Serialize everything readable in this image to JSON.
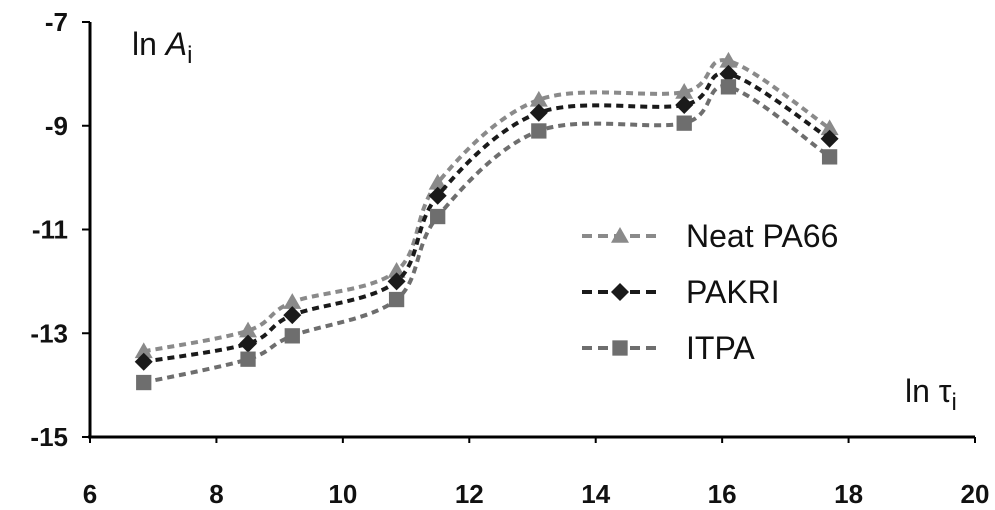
{
  "chart_data": {
    "type": "line",
    "title": "",
    "xlabel": {
      "prefix": "ln ",
      "symbol": "τ",
      "subscript": "i"
    },
    "ylabel": {
      "prefix": "ln ",
      "symbol": "A",
      "subscript": "i"
    },
    "xlim": [
      6,
      20
    ],
    "ylim": [
      -15,
      -7
    ],
    "xticks": [
      "6",
      "8",
      "10",
      "12",
      "14",
      "16",
      "18",
      "20"
    ],
    "yticks": [
      "-7",
      "-9",
      "-11",
      "-13",
      "-15"
    ],
    "grid": false,
    "legend_position": "center-right",
    "series": [
      {
        "name": "Neat PA66",
        "marker": "triangle",
        "color": "#8a8a8a",
        "x": [
          6.85,
          8.5,
          9.2,
          10.85,
          11.5,
          13.1,
          15.4,
          16.1,
          17.7
        ],
        "y": [
          -13.35,
          -12.95,
          -12.4,
          -11.8,
          -10.1,
          -8.5,
          -8.35,
          -7.75,
          -9.05
        ]
      },
      {
        "name": "PAKRI",
        "marker": "diamond",
        "color": "#1a1a1a",
        "x": [
          6.85,
          8.5,
          9.2,
          10.85,
          11.5,
          13.1,
          15.4,
          16.1,
          17.7
        ],
        "y": [
          -13.55,
          -13.2,
          -12.65,
          -12.0,
          -10.35,
          -8.75,
          -8.6,
          -8.0,
          -9.25
        ]
      },
      {
        "name": "ITPA",
        "marker": "square",
        "color": "#6e6e6e",
        "x": [
          6.85,
          8.5,
          9.2,
          10.85,
          11.5,
          13.1,
          15.4,
          16.1,
          17.7
        ],
        "y": [
          -13.95,
          -13.5,
          -13.05,
          -12.35,
          -10.75,
          -9.1,
          -8.95,
          -8.25,
          -9.6
        ]
      }
    ]
  }
}
